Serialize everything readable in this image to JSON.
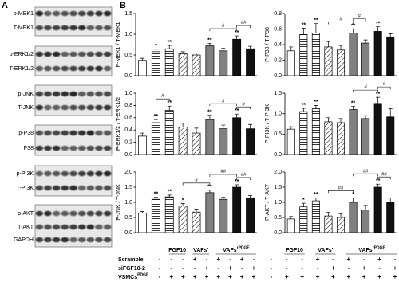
{
  "panels": {
    "a": "A",
    "b": "B"
  },
  "blots": {
    "labels": [
      "p-MEK1",
      "T-MEK1",
      "p-ERK1/2",
      "T-ERK1/2",
      "p-JNK",
      "T-JNK",
      "p-P38",
      "P38",
      "p-PI3K",
      "T-PI3K",
      "p-AKT",
      "T-AKT",
      "GAPDH"
    ]
  },
  "tables": [
    {
      "groups": [
        {
          "text": "FGF10"
        },
        {
          "text": "VAFs'"
        },
        {
          "text": "VAFs",
          "sup": "rPDGF"
        }
      ],
      "rows": [
        {
          "label": {
            "text": "Scramble"
          },
          "cells": [
            "-",
            "-",
            "-",
            "+",
            "-",
            "+",
            "-",
            "+",
            "-"
          ]
        },
        {
          "label": {
            "text": "siFGF10-2"
          },
          "cells": [
            "-",
            "-",
            "-",
            "-",
            "+",
            "-",
            "+",
            "-",
            "+"
          ]
        },
        {
          "label": {
            "text": "VSMCs",
            "sup": "PDGF"
          },
          "cells": [
            "-",
            "+",
            "+",
            "+",
            "+",
            "+",
            "+",
            "+",
            "+"
          ]
        }
      ]
    },
    {
      "groups": [
        {
          "text": "FGF10"
        },
        {
          "text": "VAFs'"
        },
        {
          "text": "VAFs",
          "sup": "rPDGF"
        }
      ],
      "rows": [
        {
          "cells": [
            "-",
            "-",
            "-",
            "+",
            "-",
            "+",
            "-",
            "+",
            "-"
          ]
        },
        {
          "cells": [
            "-",
            "-",
            "-",
            "-",
            "+",
            "-",
            "+",
            "-",
            "+"
          ]
        },
        {
          "cells": [
            "-",
            "+",
            "+",
            "+",
            "+",
            "+",
            "+",
            "+",
            "+"
          ]
        }
      ]
    }
  ],
  "chart_data": [
    {
      "type": "bar",
      "y_label": "P-MEK1 / T-MEK1",
      "categories": [
        null,
        null,
        null,
        null,
        null,
        null,
        null,
        null,
        null
      ],
      "values": [
        0.37,
        0.58,
        0.65,
        0.53,
        0.5,
        0.72,
        0.6,
        0.88,
        0.65
      ],
      "errors": [
        0.05,
        0.06,
        0.08,
        0.05,
        0.05,
        0.06,
        0.06,
        0.08,
        0.06
      ],
      "stars": [
        null,
        "*",
        "**",
        null,
        null,
        "**",
        null,
        "**",
        null
      ],
      "brackets": [
        {
          "label": "#",
          "between": [
            5,
            7
          ]
        },
        {
          "label": "##",
          "between": [
            7,
            8
          ]
        }
      ],
      "bar_fills": [
        "white",
        "horizontal",
        "horizontal",
        "diagonal",
        "diagonal",
        "gray",
        "gray",
        "black",
        "black"
      ],
      "ylim": [
        0,
        1.5
      ],
      "yticks": [
        {
          "value": 0,
          "label": "0.0"
        },
        {
          "value": 0.5,
          "label": "0.5"
        },
        {
          "value": 1,
          "label": "1.0"
        },
        {
          "value": 1.5,
          "label": "1.5"
        }
      ]
    },
    {
      "type": "bar",
      "y_label": "P-P38 / T-P38",
      "categories": [
        null,
        null,
        null,
        null,
        null,
        null,
        null,
        null,
        null
      ],
      "values": [
        0.32,
        0.53,
        0.55,
        0.37,
        0.33,
        0.55,
        0.42,
        0.57,
        0.5
      ],
      "errors": [
        0.05,
        0.08,
        0.12,
        0.07,
        0.06,
        0.05,
        0.04,
        0.06,
        0.04
      ],
      "stars": [
        null,
        "**",
        "**",
        null,
        null,
        "**",
        null,
        "**",
        null
      ],
      "brackets": [
        {
          "label": "#",
          "between": [
            3,
            5
          ]
        },
        {
          "label": "#",
          "between": [
            5,
            6
          ]
        }
      ],
      "bar_fills": [
        "white",
        "horizontal",
        "horizontal",
        "diagonal",
        "diagonal",
        "gray",
        "gray",
        "black",
        "black"
      ],
      "ylim": [
        0,
        0.8
      ],
      "yticks": [
        {
          "value": 0,
          "label": "0.0"
        },
        0.2,
        0.4,
        0.6,
        0.8
      ]
    },
    {
      "type": "bar",
      "y_label": "P-ERK1/2 / T-ERK1/2",
      "categories": [
        null,
        null,
        null,
        null,
        null,
        null,
        null,
        null,
        null
      ],
      "values": [
        0.3,
        0.52,
        0.72,
        0.45,
        0.35,
        0.57,
        0.42,
        0.6,
        0.42
      ],
      "errors": [
        0.05,
        0.05,
        0.07,
        0.06,
        0.08,
        0.07,
        0.06,
        0.06,
        0.07
      ],
      "stars": [
        null,
        "**",
        "**",
        null,
        null,
        "**",
        null,
        "**",
        null
      ],
      "brackets": [
        {
          "label": "#",
          "between": [
            1,
            2
          ]
        },
        {
          "label": "#",
          "between": [
            5,
            7
          ]
        },
        {
          "label": "#",
          "between": [
            7,
            8
          ]
        }
      ],
      "bar_fills": [
        "white",
        "horizontal",
        "horizontal",
        "diagonal",
        "diagonal",
        "gray",
        "gray",
        "black",
        "black"
      ],
      "ylim": [
        0,
        1.0
      ],
      "yticks": [
        {
          "value": 0,
          "label": "0.0"
        },
        0.2,
        0.4,
        0.6,
        0.8,
        {
          "value": 1,
          "label": "1.0"
        }
      ]
    },
    {
      "type": "bar",
      "y_label": "P-PI3K / T-PI3K",
      "categories": [
        null,
        null,
        null,
        null,
        null,
        null,
        null,
        null,
        null
      ],
      "values": [
        0.62,
        1.05,
        1.12,
        0.8,
        0.78,
        1.1,
        0.88,
        1.25,
        0.92
      ],
      "errors": [
        0.06,
        0.08,
        0.08,
        0.1,
        0.1,
        0.08,
        0.07,
        0.15,
        0.2
      ],
      "stars": [
        null,
        "**",
        "**",
        null,
        null,
        "**",
        null,
        "**",
        null
      ],
      "brackets": [
        {
          "label": "#",
          "between": [
            5,
            7
          ]
        },
        {
          "label": "#",
          "between": [
            7,
            8
          ]
        }
      ],
      "bar_fills": [
        "white",
        "horizontal",
        "horizontal",
        "diagonal",
        "diagonal",
        "gray",
        "gray",
        "black",
        "black"
      ],
      "ylim": [
        0,
        1.5
      ],
      "yticks": [
        {
          "value": 0,
          "label": "0.0"
        },
        {
          "value": 0.5,
          "label": "0.5"
        },
        {
          "value": 1,
          "label": "1.0"
        },
        {
          "value": 1.5,
          "label": "1.5"
        }
      ]
    },
    {
      "type": "bar",
      "y_label": "P-JNK / T-JNK",
      "categories": [
        null,
        null,
        null,
        null,
        null,
        null,
        null,
        null,
        null
      ],
      "values": [
        0.65,
        1.1,
        1.18,
        0.88,
        0.68,
        1.32,
        1.1,
        1.5,
        1.15
      ],
      "errors": [
        0.05,
        0.07,
        0.06,
        0.08,
        0.1,
        0.08,
        0.07,
        0.08,
        0.07
      ],
      "stars": [
        null,
        "**",
        "**",
        "*",
        null,
        "**",
        null,
        "**",
        null
      ],
      "brackets": [
        {
          "label": "#",
          "between": [
            3,
            5
          ]
        },
        {
          "label": "##",
          "between": [
            5,
            7
          ]
        },
        {
          "label": "##",
          "between": [
            7,
            8
          ]
        }
      ],
      "bar_fills": [
        "white",
        "horizontal",
        "horizontal",
        "diagonal",
        "diagonal",
        "gray",
        "gray",
        "black",
        "black"
      ],
      "ylim": [
        0,
        2.0
      ],
      "yticks": [
        {
          "value": 0,
          "label": "0.0"
        },
        {
          "value": 0.5,
          "label": "0.5"
        },
        {
          "value": 1,
          "label": "1.0"
        },
        {
          "value": 1.5,
          "label": "1.5"
        },
        {
          "value": 2,
          "label": "2.0"
        }
      ]
    },
    {
      "type": "bar",
      "y_label": "P-AKT / T-AKT",
      "categories": [
        null,
        null,
        null,
        null,
        null,
        null,
        null,
        null,
        null
      ],
      "values": [
        0.45,
        0.85,
        1.05,
        0.55,
        0.5,
        1.0,
        0.75,
        1.5,
        1.0
      ],
      "errors": [
        0.08,
        0.12,
        0.1,
        0.12,
        0.12,
        0.15,
        0.15,
        0.1,
        0.15
      ],
      "stars": [
        null,
        "*",
        "**",
        null,
        null,
        "*",
        null,
        "**",
        null
      ],
      "brackets": [
        {
          "label": "##",
          "between": [
            3,
            5
          ]
        },
        {
          "label": "##",
          "between": [
            5,
            7
          ]
        },
        {
          "label": "##",
          "between": [
            7,
            8
          ]
        }
      ],
      "bar_fills": [
        "white",
        "horizontal",
        "horizontal",
        "diagonal",
        "diagonal",
        "gray",
        "gray",
        "black",
        "black"
      ],
      "ylim": [
        0,
        2.0
      ],
      "yticks": [
        {
          "value": 0,
          "label": "0.0"
        },
        {
          "value": 0.5,
          "label": "0.5"
        },
        {
          "value": 1,
          "label": "1.0"
        },
        {
          "value": 1.5,
          "label": "1.5"
        },
        {
          "value": 2,
          "label": "2.0"
        }
      ]
    }
  ]
}
